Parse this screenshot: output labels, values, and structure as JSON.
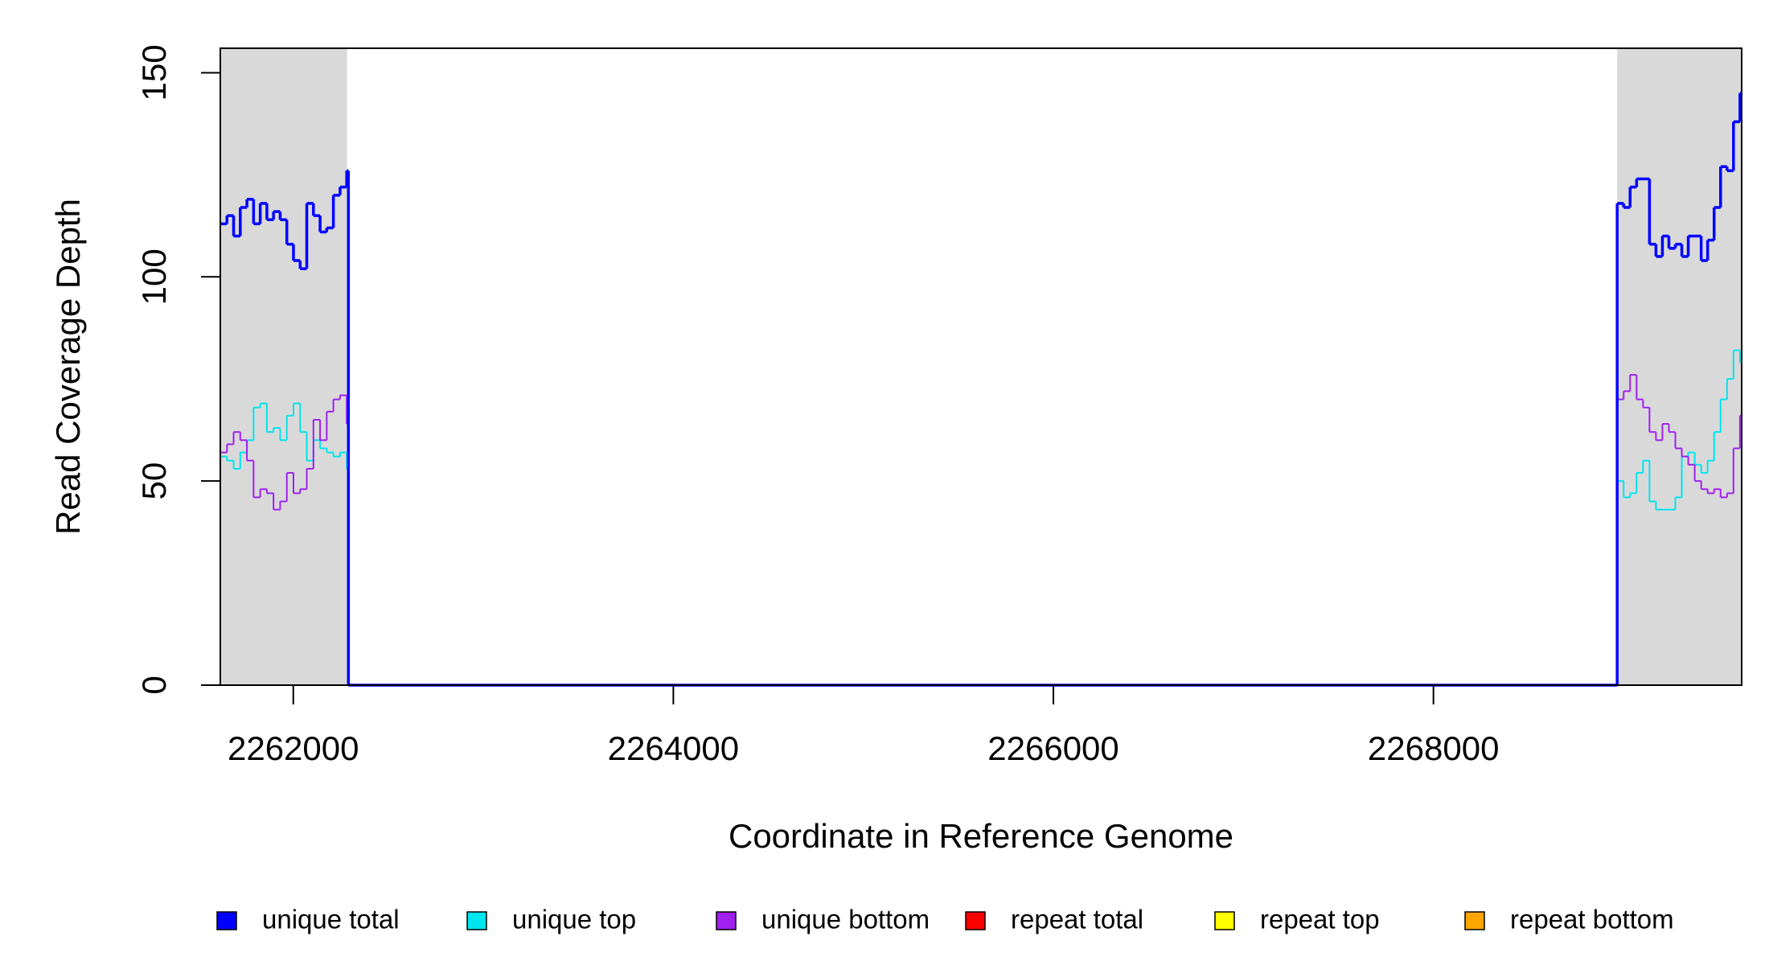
{
  "chart_data": {
    "type": "step",
    "x_label": "Coordinate in Reference Genome",
    "y_label": "Read Coverage Depth",
    "xlim": [
      2261616,
      2269622
    ],
    "ylim": [
      0,
      156
    ],
    "xticks": [
      2262000,
      2264000,
      2266000,
      2268000
    ],
    "yticks": [
      0,
      50,
      100,
      150
    ],
    "shaded_regions": [
      [
        2261616,
        2262283
      ],
      [
        2268967,
        2269622
      ]
    ],
    "shade_color": "#d9d9d9",
    "x": [
      2261616,
      2261651,
      2261686,
      2261721,
      2261756,
      2261791,
      2261826,
      2261861,
      2261896,
      2261931,
      2261966,
      2262001,
      2262036,
      2262071,
      2262106,
      2262141,
      2262176,
      2262211,
      2262246,
      2262281,
      2262290,
      2268960,
      2268967,
      2269001,
      2269035,
      2269069,
      2269103,
      2269137,
      2269171,
      2269205,
      2269239,
      2269273,
      2269307,
      2269341,
      2269375,
      2269409,
      2269443,
      2269477,
      2269511,
      2269545,
      2269579,
      2269613
    ],
    "series": [
      {
        "name": "unique total",
        "color": "#0000ff",
        "values": [
          113,
          115,
          110,
          117,
          119,
          113,
          118,
          114,
          116,
          114,
          108,
          104,
          102,
          118,
          115,
          111,
          112,
          120,
          122,
          126,
          0,
          0,
          118,
          117,
          122,
          124,
          124,
          108,
          105,
          110,
          107,
          108,
          105,
          110,
          110,
          104,
          109,
          117,
          127,
          126,
          138,
          145
        ]
      },
      {
        "name": "unique top",
        "color": "#00e5ee",
        "values": [
          56,
          55,
          53,
          57,
          60,
          68,
          69,
          62,
          63,
          60,
          66,
          69,
          62,
          55,
          60,
          58,
          57,
          56,
          57,
          53,
          0,
          0,
          50,
          46,
          47,
          52,
          55,
          45,
          43,
          43,
          43,
          46,
          56,
          57,
          54,
          52,
          55,
          62,
          70,
          75,
          82,
          79
        ]
      },
      {
        "name": "unique bottom",
        "color": "#a020f0",
        "values": [
          57,
          59,
          62,
          60,
          55,
          46,
          48,
          47,
          43,
          45,
          52,
          47,
          48,
          53,
          65,
          60,
          67,
          70,
          71,
          64,
          0,
          0,
          70,
          72,
          76,
          70,
          68,
          62,
          60,
          64,
          62,
          58,
          56,
          54,
          50,
          48,
          47,
          48,
          46,
          47,
          58,
          66
        ]
      },
      {
        "name": "repeat total",
        "color": "#ff0000",
        "values": [
          0,
          0,
          0,
          0,
          0,
          0,
          0,
          0,
          0,
          0,
          0,
          0,
          0,
          0,
          0,
          0,
          0,
          0,
          0,
          0,
          0,
          0,
          0,
          0,
          0,
          0,
          0,
          0,
          0,
          0,
          0,
          0,
          0,
          0,
          0,
          0,
          0,
          0,
          0,
          0,
          0,
          0
        ]
      },
      {
        "name": "repeat top",
        "color": "#ffff00",
        "values": [
          0,
          0,
          0,
          0,
          0,
          0,
          0,
          0,
          0,
          0,
          0,
          0,
          0,
          0,
          0,
          0,
          0,
          0,
          0,
          0,
          0,
          0,
          0,
          0,
          0,
          0,
          0,
          0,
          0,
          0,
          0,
          0,
          0,
          0,
          0,
          0,
          0,
          0,
          0,
          0,
          0,
          0
        ]
      },
      {
        "name": "repeat bottom",
        "color": "#ffa500",
        "values": [
          0,
          0,
          0,
          0,
          0,
          0,
          0,
          0,
          0,
          0,
          0,
          0,
          0,
          0,
          0,
          0,
          0,
          0,
          0,
          0,
          0,
          0,
          0,
          0,
          0,
          0,
          0,
          0,
          0,
          0,
          0,
          0,
          0,
          0,
          0,
          0,
          0,
          0,
          0,
          0,
          0,
          0
        ]
      }
    ]
  }
}
